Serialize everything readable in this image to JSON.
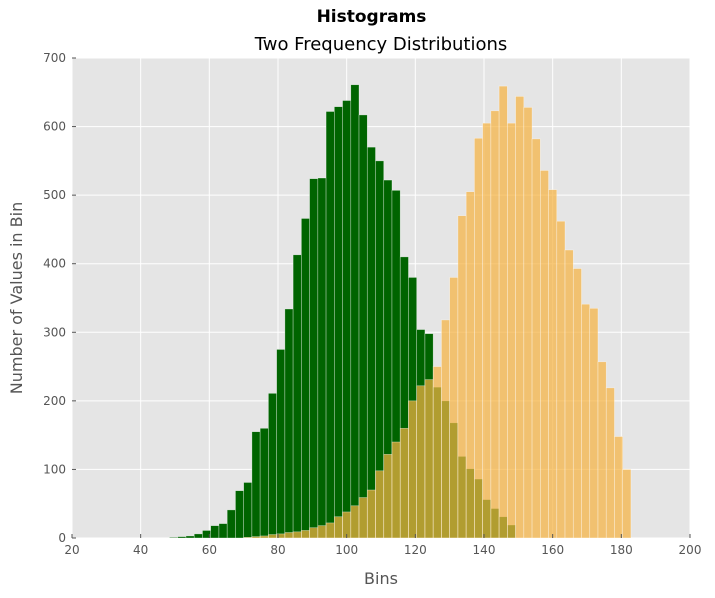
{
  "chart_data": {
    "type": "bar",
    "title": "Two Frequency Distributions",
    "suptitle": "Histograms",
    "xlabel": "Bins",
    "ylabel": "Number of Values in Bin",
    "xlim": [
      20,
      200
    ],
    "ylim": [
      0,
      700
    ],
    "xticks": [
      20,
      40,
      60,
      80,
      100,
      120,
      140,
      160,
      180,
      200
    ],
    "yticks": [
      0,
      100,
      200,
      300,
      400,
      500,
      600,
      700
    ],
    "grid": true,
    "background": "#e5e5e5",
    "bin_width": 2.4,
    "series": [
      {
        "color": "#006400",
        "bin_starts": [
          48.4,
          50.8,
          53.2,
          55.6,
          58.0,
          60.4,
          62.8,
          65.2,
          67.6,
          70.0,
          72.4,
          74.8,
          77.2,
          79.6,
          82.0,
          84.4,
          86.8,
          89.2,
          91.6,
          94.0,
          96.4,
          98.8,
          101.2,
          103.6,
          106.0,
          108.4,
          110.8,
          113.2,
          115.6,
          118.0,
          120.4,
          122.8,
          125.2,
          127.6,
          130.0,
          132.4,
          134.8,
          137.2,
          139.6,
          142.0,
          144.4,
          146.8
        ],
        "values": [
          1,
          2,
          3,
          6,
          11,
          18,
          21,
          41,
          69,
          81,
          155,
          160,
          211,
          275,
          334,
          413,
          466,
          524,
          525,
          622,
          629,
          638,
          661,
          617,
          570,
          550,
          522,
          507,
          410,
          380,
          304,
          298,
          220,
          200,
          168,
          119,
          101,
          86,
          56,
          43,
          31,
          19
        ]
      },
      {
        "color": "#f5b343",
        "bin_starts": [
          70.0,
          72.4,
          74.8,
          77.2,
          79.6,
          82.0,
          84.4,
          86.8,
          89.2,
          91.6,
          94.0,
          96.4,
          98.8,
          101.2,
          103.6,
          106.0,
          108.4,
          110.8,
          113.2,
          115.6,
          118.0,
          120.4,
          122.8,
          125.2,
          127.6,
          130.0,
          132.4,
          134.8,
          137.2,
          139.6,
          142.0,
          144.4,
          146.8,
          149.2,
          151.6,
          154.0,
          156.4,
          158.8,
          161.2,
          163.6,
          166.0,
          168.4,
          170.8,
          173.2,
          175.6,
          178.0,
          180.4
        ],
        "values": [
          1,
          2,
          3,
          5,
          6,
          8,
          9,
          11,
          15,
          18,
          22,
          31,
          38,
          47,
          59,
          70,
          98,
          122,
          140,
          160,
          200,
          222,
          231,
          250,
          318,
          380,
          470,
          505,
          583,
          605,
          623,
          659,
          605,
          644,
          628,
          582,
          536,
          508,
          462,
          420,
          393,
          341,
          335,
          257,
          219,
          148,
          100
        ]
      }
    ]
  }
}
